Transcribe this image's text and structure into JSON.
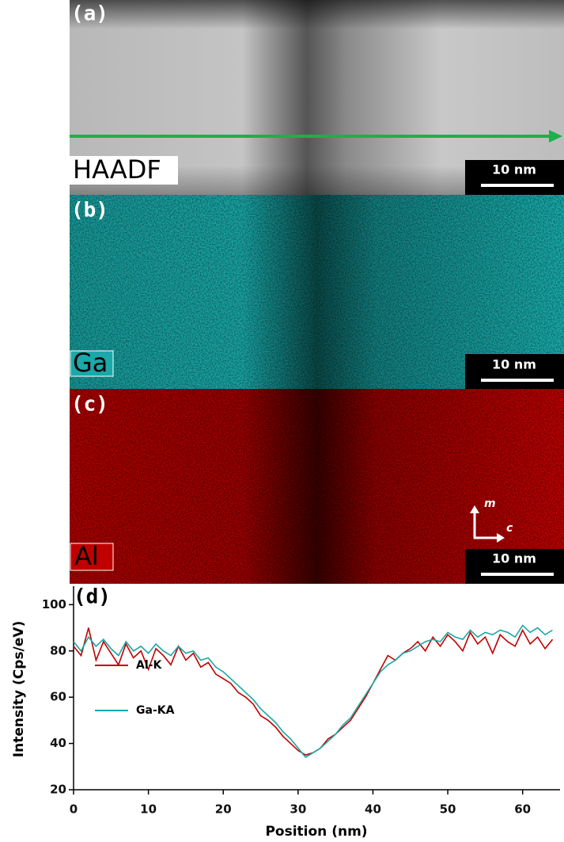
{
  "figure": {
    "panels": [
      "(a)",
      "(b)",
      "(c)"
    ],
    "maps": [
      "HAADF",
      "Ga",
      "Al"
    ],
    "scale_bars": [
      "10 nm",
      "10 nm",
      "10 nm"
    ],
    "axes": [
      "m",
      "c"
    ]
  },
  "chart_data": {
    "type": "line",
    "panel": "(d)",
    "xlabel": "Position (nm)",
    "ylabel": "Intensity (Cps/eV)",
    "x": [
      0,
      1,
      2,
      3,
      4,
      5,
      6,
      7,
      8,
      9,
      10,
      11,
      12,
      13,
      14,
      15,
      16,
      17,
      18,
      19,
      20,
      21,
      22,
      23,
      24,
      25,
      26,
      27,
      28,
      29,
      30,
      31,
      32,
      33,
      34,
      35,
      36,
      37,
      38,
      39,
      40,
      41,
      42,
      43,
      44,
      45,
      46,
      47,
      48,
      49,
      50,
      51,
      52,
      53,
      54,
      55,
      56,
      57,
      58,
      59,
      60,
      61,
      62,
      63,
      64
    ],
    "series": [
      {
        "name": "Al-K",
        "color": "#c00000",
        "values": [
          82,
          78,
          90,
          76,
          84,
          79,
          74,
          83,
          77,
          80,
          72,
          81,
          78,
          74,
          82,
          76,
          79,
          73,
          75,
          70,
          68,
          66,
          62,
          60,
          57,
          52,
          50,
          47,
          43,
          40,
          37,
          35,
          36,
          38,
          42,
          44,
          47,
          50,
          55,
          60,
          66,
          72,
          78,
          76,
          79,
          81,
          84,
          80,
          86,
          82,
          87,
          84,
          80,
          88,
          83,
          86,
          79,
          87,
          84,
          82,
          89,
          83,
          86,
          81,
          85
        ]
      },
      {
        "name": "Ga-KA",
        "color": "#1aa6a6",
        "values": [
          84,
          80,
          86,
          82,
          85,
          81,
          78,
          84,
          80,
          82,
          79,
          83,
          80,
          78,
          82,
          79,
          80,
          76,
          77,
          73,
          71,
          68,
          65,
          62,
          59,
          55,
          52,
          49,
          45,
          42,
          38,
          34,
          36,
          38,
          41,
          44,
          48,
          51,
          56,
          61,
          66,
          71,
          74,
          76,
          79,
          80,
          82,
          84,
          85,
          84,
          88,
          86,
          85,
          89,
          86,
          88,
          87,
          89,
          88,
          86,
          91,
          88,
          90,
          87,
          89
        ]
      }
    ],
    "xlim": [
      0,
      65
    ],
    "ylim": [
      20,
      108
    ],
    "xticks": [
      0,
      10,
      20,
      30,
      40,
      50,
      60
    ],
    "yticks": [
      20,
      40,
      60,
      80,
      100
    ]
  }
}
